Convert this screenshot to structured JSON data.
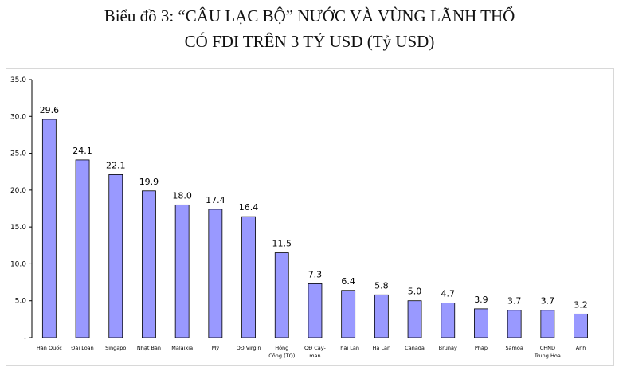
{
  "chart_data": {
    "type": "bar",
    "title_line1": "Biểu đồ 3: “CÂU LẠC BỘ” NƯỚC VÀ VÙNG LÃNH THỔ",
    "title_line2": "CÓ FDI TRÊN 3 TỶ USD (Tỷ USD)",
    "categories": [
      "Hàn Quốc",
      "Đài Loan",
      "Singapo",
      "Nhật Bản",
      "Malaixia",
      "Mỹ",
      "QĐ Virgin",
      "Hồng Công (TQ)",
      "QĐ Cay-man",
      "Thái Lan",
      "Hà Lan",
      "Canada",
      "Brunây",
      "Pháp",
      "Samoa",
      "CHND Trung Hoa",
      "Anh"
    ],
    "category_lines": [
      [
        "Hàn Quốc"
      ],
      [
        "Đài Loan"
      ],
      [
        "Singapo"
      ],
      [
        "Nhật Bản"
      ],
      [
        "Malaixia"
      ],
      [
        "Mỹ"
      ],
      [
        "QĐ Virgin"
      ],
      [
        "Hồng",
        "Công (TQ)"
      ],
      [
        "QĐ Cay-",
        "man"
      ],
      [
        "Thái Lan"
      ],
      [
        "Hà Lan"
      ],
      [
        "Canada"
      ],
      [
        "Brunây"
      ],
      [
        "Pháp"
      ],
      [
        "Samoa"
      ],
      [
        "CHND",
        "Trung Hoa"
      ],
      [
        "Anh"
      ]
    ],
    "values": [
      29.6,
      24.1,
      22.1,
      19.9,
      18.0,
      17.4,
      16.4,
      11.5,
      7.3,
      6.4,
      5.8,
      5.0,
      4.7,
      3.9,
      3.7,
      3.7,
      3.2
    ],
    "value_labels": [
      "29.6",
      "24.1",
      "22.1",
      "19.9",
      "18.0",
      "17.4",
      "16.4",
      "11.5",
      "7.3",
      "6.4",
      "5.8",
      "5.0",
      "4.7",
      "3.9",
      "3.7",
      "3.7",
      "3.2"
    ],
    "y_ticks": [
      "-",
      "5.0",
      "10.0",
      "15.0",
      "20.0",
      "25.0",
      "30.0",
      "35.0"
    ],
    "y_tick_values": [
      0,
      5,
      10,
      15,
      20,
      25,
      30,
      35
    ],
    "ylim": [
      0,
      35
    ],
    "grid": false,
    "bar_color": "#9999ff",
    "bar_stroke": "#000000"
  }
}
